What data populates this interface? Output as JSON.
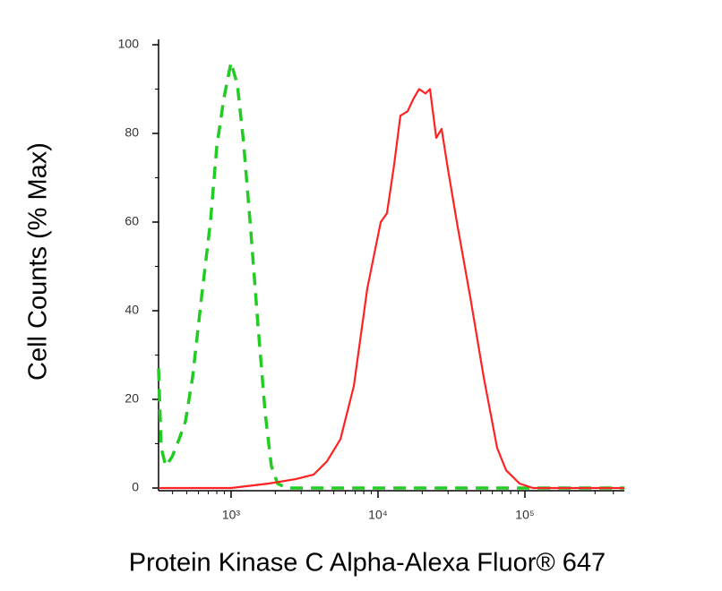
{
  "chart_data": {
    "type": "line",
    "x_label": "Protein Kinase C Alpha-Alexa Fluor® 647",
    "y_label": "Cell Counts (% Max)",
    "x_scale": "log",
    "xlim": [
      321,
      475000
    ],
    "xticks": [
      {
        "value": 1000,
        "label": "10³"
      },
      {
        "value": 10000,
        "label": "10⁴"
      },
      {
        "value": 100000,
        "label": "10⁵"
      }
    ],
    "xminorticks": [
      400,
      500,
      600,
      700,
      800,
      900,
      2000,
      3000,
      4000,
      5000,
      6000,
      7000,
      8000,
      9000,
      20000,
      30000,
      40000,
      50000,
      60000,
      70000,
      80000,
      90000,
      200000,
      300000,
      400000
    ],
    "ylim": [
      0,
      100
    ],
    "yticks": [
      0,
      20,
      40,
      60,
      80,
      100
    ],
    "yminorticks": [
      10,
      30,
      50,
      70,
      90
    ],
    "series": [
      {
        "color": "#22cc22",
        "line_style": "dashed",
        "x": [
          321,
          335,
          359,
          396,
          443,
          489,
          547,
          630,
          724,
          799,
          894,
          1000,
          1104,
          1217,
          1362,
          1523,
          1706,
          1880,
          2075,
          2388,
          475000
        ],
        "values": [
          27,
          9,
          5,
          7,
          11,
          15,
          25,
          43,
          60,
          77,
          88,
          96,
          91,
          78,
          58,
          37,
          17,
          5,
          1,
          0,
          0
        ]
      },
      {
        "color": "#ff2222",
        "line_style": "solid",
        "x": [
          321,
          1000,
          1803,
          2750,
          3639,
          4490,
          5545,
          6843,
          8451,
          10430,
          11510,
          12880,
          14200,
          15890,
          17530,
          19060,
          21040,
          22580,
          24900,
          27100,
          29920,
          34430,
          42480,
          52440,
          64730,
          74470,
          91860,
          113400,
          475000
        ],
        "values": [
          0,
          0,
          1,
          2,
          3,
          6,
          11,
          23,
          45,
          60,
          62,
          73,
          84,
          85,
          88,
          90,
          89,
          90,
          79,
          81,
          72,
          60,
          43,
          25,
          9,
          4,
          1,
          0,
          0
        ]
      }
    ]
  }
}
